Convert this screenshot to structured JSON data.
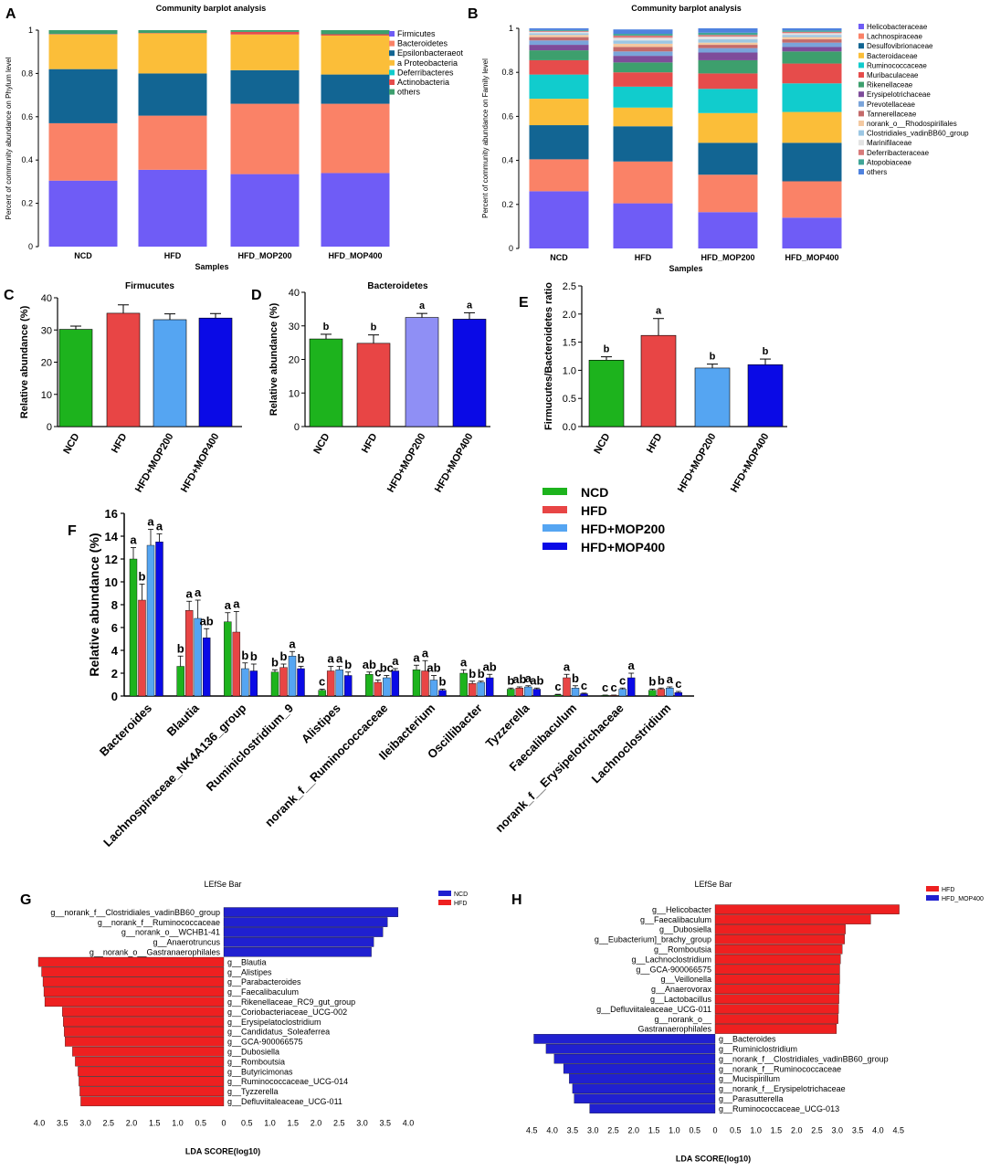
{
  "panel_labels": {
    "A": "A",
    "B": "B",
    "C": "C",
    "D": "D",
    "E": "E",
    "F": "F",
    "G": "G",
    "H": "H"
  },
  "colors": {
    "green": "#1DB31D",
    "red": "#E84545",
    "lightblue": "#55A5F2",
    "blue": "#0A0AE6",
    "lefse_blue": "#2020D0",
    "lefse_red": "#EE2020",
    "phylum": [
      "#6F5CF6",
      "#FA8267",
      "#126593",
      "#FBBE39",
      "#11CCCD",
      "#E64C4B",
      "#3D9F6D"
    ],
    "family": [
      "#6F5CF6",
      "#FA8267",
      "#126593",
      "#FBBE39",
      "#11CCCD",
      "#E64C4B",
      "#3D9F6D",
      "#7E4C9A",
      "#7AA4DA",
      "#C46A6A",
      "#F4C9A1",
      "#9CC7E4",
      "#E3E3E3",
      "#D87A7A",
      "#3FA597",
      "#4F82DF"
    ]
  },
  "chart_data": [
    {
      "id": "A",
      "type": "bar",
      "stacked": true,
      "title": "Community barplot analysis",
      "xlabel": "Samples",
      "ylabel": "Percent of community abundance on Phylum level",
      "ylim": [
        0,
        1
      ],
      "yticks": [
        "0",
        "0.2",
        "0.4",
        "0.6",
        "0.8",
        "1"
      ],
      "categories": [
        "NCD",
        "HFD",
        "HFD_MOP200",
        "HFD_MOP400"
      ],
      "series": [
        {
          "name": "Firmicutes",
          "values": [
            0.305,
            0.355,
            0.335,
            0.34
          ]
        },
        {
          "name": "Bacteroidetes",
          "values": [
            0.265,
            0.25,
            0.325,
            0.32
          ]
        },
        {
          "name": "Epsilonbacteraeot",
          "values": [
            0.25,
            0.195,
            0.155,
            0.135
          ]
        },
        {
          "name": "a Proteobacteria",
          "values": [
            0.16,
            0.185,
            0.165,
            0.18
          ]
        },
        {
          "name": "Deferribacteres",
          "values": [
            0.0,
            0.0,
            0.0,
            0.0
          ]
        },
        {
          "name": "Actinobacteria",
          "values": [
            0.002,
            0.002,
            0.012,
            0.006
          ]
        },
        {
          "name": "others",
          "values": [
            0.018,
            0.013,
            0.008,
            0.019
          ]
        }
      ]
    },
    {
      "id": "B",
      "type": "bar",
      "stacked": true,
      "title": "Community barplot analysis",
      "xlabel": "Samples",
      "ylabel": "Percent of community abundance on Family level",
      "ylim": [
        0,
        1
      ],
      "yticks": [
        "0",
        "0.2",
        "0.4",
        "0.6",
        "0.8",
        "1"
      ],
      "categories": [
        "NCD",
        "HFD",
        "HFD_MOP200",
        "HFD_MOP400"
      ],
      "series": [
        {
          "name": "Helicobacteraceae",
          "values": [
            0.26,
            0.205,
            0.165,
            0.14
          ]
        },
        {
          "name": "Lachnospiraceae",
          "values": [
            0.145,
            0.19,
            0.17,
            0.165
          ]
        },
        {
          "name": "Desulfovibrionaceae",
          "values": [
            0.155,
            0.16,
            0.145,
            0.175
          ]
        },
        {
          "name": "Bacteroidaceae",
          "values": [
            0.12,
            0.085,
            0.135,
            0.14
          ]
        },
        {
          "name": "Ruminococcaceae",
          "values": [
            0.11,
            0.095,
            0.11,
            0.13
          ]
        },
        {
          "name": "Muribaculaceae",
          "values": [
            0.065,
            0.065,
            0.07,
            0.09
          ]
        },
        {
          "name": "Rikenellaceae",
          "values": [
            0.045,
            0.045,
            0.06,
            0.055
          ]
        },
        {
          "name": "Erysipelotrichaceae",
          "values": [
            0.025,
            0.03,
            0.035,
            0.02
          ]
        },
        {
          "name": "Prevotellaceae",
          "values": [
            0.02,
            0.02,
            0.02,
            0.02
          ]
        },
        {
          "name": "Tannerellaceae",
          "values": [
            0.015,
            0.02,
            0.015,
            0.015
          ]
        },
        {
          "name": "norank_o__Rhodospirillales",
          "values": [
            0.01,
            0.015,
            0.01,
            0.01
          ]
        },
        {
          "name": "Clostridiales_vadinBB60_group",
          "values": [
            0.008,
            0.015,
            0.015,
            0.01
          ]
        },
        {
          "name": "Marinifilaceae",
          "values": [
            0.006,
            0.012,
            0.012,
            0.008
          ]
        },
        {
          "name": "Deferribacteraceae",
          "values": [
            0.004,
            0.01,
            0.008,
            0.006
          ]
        },
        {
          "name": "Atopobiaceae",
          "values": [
            0.004,
            0.008,
            0.01,
            0.006
          ]
        },
        {
          "name": "others",
          "values": [
            0.008,
            0.02,
            0.02,
            0.01
          ]
        }
      ]
    },
    {
      "id": "C",
      "type": "bar",
      "title": "Firmucutes",
      "ylabel": "Relative abundance (%)",
      "ylim": [
        0,
        40
      ],
      "yticks": [
        "0",
        "10",
        "20",
        "30",
        "40"
      ],
      "categories": [
        "NCD",
        "HFD",
        "HFD+MOP200",
        "HFD+MOP400"
      ],
      "values": [
        30.2,
        35.2,
        33.2,
        33.7
      ],
      "errors": [
        1.0,
        2.6,
        1.8,
        1.4
      ],
      "letters": [
        "",
        "",
        "",
        ""
      ]
    },
    {
      "id": "D",
      "type": "bar",
      "title": "Bacteroidetes",
      "ylabel": "Relative abundance (%)",
      "ylim": [
        0,
        40
      ],
      "yticks": [
        "0",
        "10",
        "20",
        "30",
        "40"
      ],
      "categories": [
        "NCD",
        "HFD",
        "HFD+MOP200",
        "HFD+MOP400"
      ],
      "values": [
        26.1,
        24.8,
        32.5,
        32.0
      ],
      "errors": [
        1.4,
        2.5,
        1.2,
        1.9
      ],
      "letters": [
        "b",
        "b",
        "a",
        "a"
      ]
    },
    {
      "id": "E",
      "type": "bar",
      "title": "",
      "ylabel": "Firmucutes/Bacteroidetes ratio",
      "ylim": [
        0,
        2.5
      ],
      "yticks": [
        "0.0",
        "0.5",
        "1.0",
        "1.5",
        "2.0",
        "2.5"
      ],
      "categories": [
        "NCD",
        "HFD",
        "HFD+MOP200",
        "HFD+MOP400"
      ],
      "values": [
        1.18,
        1.62,
        1.04,
        1.1
      ],
      "errors": [
        0.06,
        0.3,
        0.07,
        0.1
      ],
      "letters": [
        "b",
        "a",
        "b",
        "b"
      ]
    },
    {
      "id": "F",
      "type": "bar",
      "grouped": true,
      "ylabel": "Relative abundance (%)",
      "ylim": [
        0,
        16
      ],
      "yticks": [
        "0",
        "2",
        "4",
        "6",
        "8",
        "10",
        "12",
        "14",
        "16"
      ],
      "legend": [
        "NCD",
        "HFD",
        "HFD+MOP200",
        "HFD+MOP400"
      ],
      "categories": [
        "Bacteroides",
        "Blautia",
        "Lachnospiraceae_NK4A136_group",
        "Ruminiclostridium_9",
        "Alistipes",
        "norank_f__Ruminococcaceae",
        "Ileibacterium",
        "Oscillibacter",
        "Tyzzerella",
        "Faecalibaculum",
        "norank_f__Erysipelotrichaceae",
        "Lachnoclostridium"
      ],
      "series": [
        {
          "name": "NCD",
          "values": [
            12.0,
            2.6,
            6.5,
            2.1,
            0.5,
            1.9,
            2.3,
            2.0,
            0.6,
            0.1,
            0.05,
            0.5
          ],
          "errors": [
            1.0,
            0.9,
            0.8,
            0.2,
            0.1,
            0.2,
            0.4,
            0.3,
            0.1,
            0.05,
            0.03,
            0.1
          ],
          "letters": [
            "a",
            "b",
            "a",
            "b",
            "c",
            "ab",
            "a",
            "a",
            "b",
            "c",
            "c",
            "b"
          ]
        },
        {
          "name": "HFD",
          "values": [
            8.4,
            7.5,
            5.6,
            2.5,
            2.2,
            1.2,
            2.2,
            1.1,
            0.7,
            1.6,
            0.05,
            0.6
          ],
          "errors": [
            1.4,
            0.8,
            1.8,
            0.3,
            0.4,
            0.2,
            0.9,
            0.2,
            0.1,
            0.3,
            0.03,
            0.1
          ],
          "letters": [
            "b",
            "a",
            "a",
            "b",
            "a",
            "c",
            "a",
            "b",
            "ab",
            "a",
            "c",
            "b"
          ]
        },
        {
          "name": "HFD+MOP200",
          "values": [
            13.2,
            6.8,
            2.4,
            3.5,
            2.3,
            1.6,
            1.4,
            1.2,
            0.8,
            0.7,
            0.6,
            0.7
          ],
          "errors": [
            1.4,
            1.6,
            0.5,
            0.4,
            0.3,
            0.2,
            0.4,
            0.1,
            0.1,
            0.2,
            0.1,
            0.1
          ],
          "letters": [
            "a",
            "a",
            "b",
            "a",
            "a",
            "bc",
            "ab",
            "b",
            "a",
            "b",
            "c",
            "a"
          ]
        },
        {
          "name": "HFD+MOP400",
          "values": [
            13.5,
            5.1,
            2.2,
            2.4,
            1.8,
            2.2,
            0.5,
            1.6,
            0.6,
            0.2,
            1.6,
            0.3
          ],
          "errors": [
            0.7,
            0.8,
            0.6,
            0.2,
            0.3,
            0.2,
            0.1,
            0.3,
            0.1,
            0.05,
            0.4,
            0.1
          ],
          "letters": [
            "a",
            "ab",
            "b",
            "b",
            "b",
            "a",
            "b",
            "ab",
            "ab",
            "c",
            "a",
            "c"
          ]
        }
      ]
    },
    {
      "id": "G",
      "type": "bar",
      "orientation": "horizontal",
      "title": "LEfSe Bar",
      "xlabel": "LDA SCORE(log10)",
      "xlim": [
        -4.2,
        4.2
      ],
      "xticks": [
        "4.0",
        "3.5",
        "3.0",
        "2.5",
        "2.0",
        "1.5",
        "1.0",
        "0.5",
        "0",
        "0.5",
        "1.0",
        "1.5",
        "2.0",
        "2.5",
        "3.0",
        "3.5",
        "4.0"
      ],
      "legend": [
        "NCD",
        "HFD"
      ],
      "labels": [
        "g__norank_f__Clostridiales_vadinBB60_group",
        "g__norank_f__Ruminococcaceae",
        "g__norank_o__WCHB1-41",
        "g__Anaerotruncus",
        "g__norank_o__Gastranaerophilales",
        "g__Blautia",
        "g__Alistipes",
        "g__Parabacteroides",
        "g__Faecalibaculum",
        "g__Rikenellaceae_RC9_gut_group",
        "g__Coriobacteriaceae_UCG-002",
        "g__Erysipelatoclostridium",
        "g__Candidatus_Soleaferrea",
        "g__GCA-900066575",
        "g__Dubosiella",
        "g__Romboutsia",
        "g__Butyricimonas",
        "g__Ruminococcaceae_UCG-014",
        "g__Tyzzerella",
        "g__Defluviitaleaceae_UCG-011"
      ],
      "values": [
        3.78,
        3.55,
        3.45,
        3.25,
        3.2,
        -4.02,
        -3.95,
        -3.92,
        -3.9,
        -3.88,
        -3.5,
        -3.48,
        -3.46,
        -3.44,
        -3.28,
        -3.22,
        -3.16,
        -3.14,
        -3.12,
        -3.1
      ],
      "groups": [
        "NCD",
        "NCD",
        "NCD",
        "NCD",
        "NCD",
        "HFD",
        "HFD",
        "HFD",
        "HFD",
        "HFD",
        "HFD",
        "HFD",
        "HFD",
        "HFD",
        "HFD",
        "HFD",
        "HFD",
        "HFD",
        "HFD",
        "HFD"
      ]
    },
    {
      "id": "H",
      "type": "bar",
      "orientation": "horizontal",
      "title": "LEfSe Bar",
      "xlabel": "LDA SCORE(log10)",
      "xlim": [
        -4.8,
        4.8
      ],
      "xticks": [
        "4.5",
        "4.0",
        "3.5",
        "3.0",
        "2.5",
        "2.0",
        "1.5",
        "1.0",
        "0.5",
        "0",
        "0.5",
        "1.0",
        "1.5",
        "2.0",
        "2.5",
        "3.0",
        "3.5",
        "4.0",
        "4.5"
      ],
      "legend": [
        "HFD",
        "HFD_MOP400"
      ],
      "labels": [
        "g__Helicobacter",
        "g__Faecalibaculum",
        "g__Dubosiella",
        "g__Eubacterium]_brachy_group",
        "g__Romboutsia",
        "g__Lachnoclostridium",
        "g__GCA-900066575",
        "g__Veillonella",
        "g__Anaerovorax",
        "g__Lactobacillus",
        "g__Defluviitaleaceae_UCG-011",
        "g__norank_o__",
        "Gastranaerophilales",
        "g__Bacteroides",
        "g__Ruminiclostridium",
        "g__norank_f__Clostridiales_vadinBB60_group",
        "g__norank_f__Ruminococcaceae",
        "g__Mucispirillum",
        "g__norank_f__Erysipelotrichaceae",
        "g__Parasutterella",
        "g__Ruminococcaceae_UCG-013"
      ],
      "values": [
        4.52,
        3.82,
        3.2,
        3.18,
        3.12,
        3.08,
        3.06,
        3.06,
        3.05,
        3.04,
        3.03,
        3.02,
        2.98,
        -4.45,
        -4.15,
        -3.95,
        -3.72,
        -3.58,
        -3.5,
        -3.46,
        -3.08
      ],
      "groups": [
        "HFD",
        "HFD",
        "HFD",
        "HFD",
        "HFD",
        "HFD",
        "HFD",
        "HFD",
        "HFD",
        "HFD",
        "HFD",
        "HFD",
        "HFD",
        "HFD_MOP400",
        "HFD_MOP400",
        "HFD_MOP400",
        "HFD_MOP400",
        "HFD_MOP400",
        "HFD_MOP400",
        "HFD_MOP400",
        "HFD_MOP400"
      ]
    }
  ]
}
